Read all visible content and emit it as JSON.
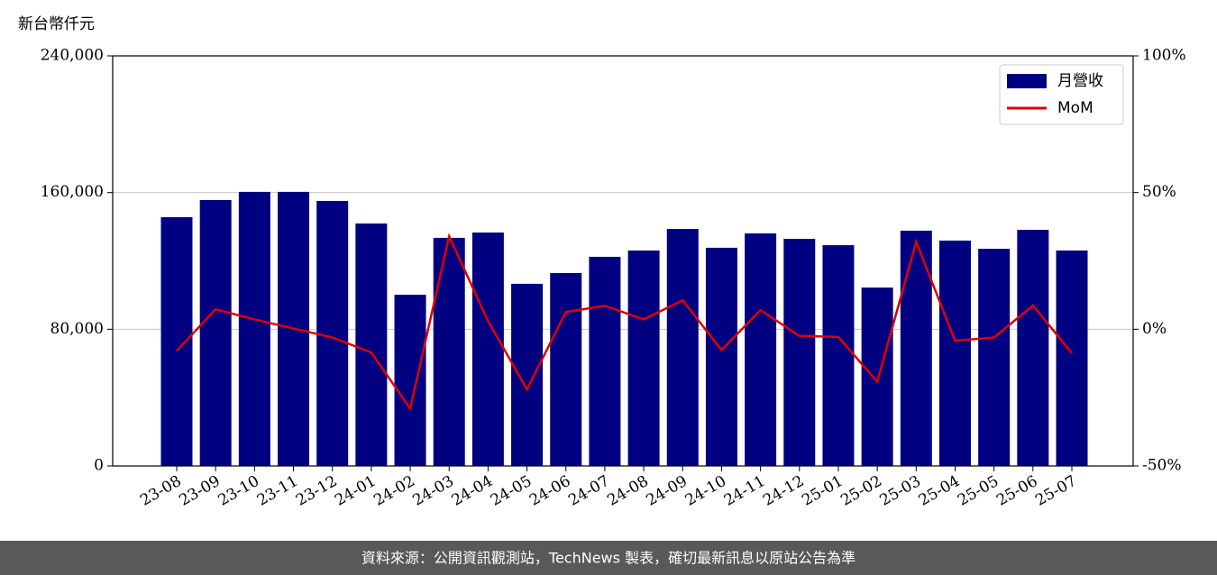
{
  "chart_data": {
    "type": "bar",
    "y_axis_label": "新台幣仟元",
    "source": "資料來源：公開資訊觀測站，TechNews 製表，確切最新訊息以原站公告為準",
    "categories": [
      "23-08",
      "23-09",
      "23-10",
      "23-11",
      "23-12",
      "24-01",
      "24-02",
      "24-03",
      "24-04",
      "24-05",
      "24-06",
      "24-07",
      "24-08",
      "24-09",
      "24-10",
      "24-11",
      "24-12",
      "25-01",
      "25-02",
      "25-03",
      "25-04",
      "25-05",
      "25-06",
      "25-07"
    ],
    "series": [
      {
        "name": "月營收",
        "type": "bar",
        "color": "#000080",
        "values": [
          145600,
          155600,
          160400,
          160400,
          155100,
          141900,
          100200,
          133500,
          136600,
          106600,
          112900,
          122400,
          126100,
          138700,
          127700,
          136100,
          132900,
          129200,
          104400,
          137700,
          131900,
          127100,
          138200,
          126100
        ]
      },
      {
        "name": "MoM",
        "type": "line",
        "axis": "y2",
        "color": "#e00000",
        "values": [
          -7.9,
          7.3,
          3.6,
          0.3,
          -3.0,
          -8.5,
          -29,
          34,
          3,
          -22,
          6.3,
          8.6,
          3.6,
          10.6,
          -7.6,
          7,
          -2.4,
          -2.8,
          -19.2,
          32,
          -4.2,
          -3.0,
          8.7,
          -8.7
        ]
      }
    ],
    "ylim": [
      0,
      240000
    ],
    "yticks": [
      0,
      {
        "value": 80000,
        "label": "80,000"
      },
      {
        "value": 160000,
        "label": "160,000"
      },
      {
        "value": 240000,
        "label": "240,000"
      }
    ],
    "y2lim": [
      -50,
      100
    ],
    "y2ticks": [
      {
        "value": -50,
        "label": "-50%"
      },
      {
        "value": 0,
        "label": "0%"
      },
      {
        "value": 50,
        "label": "50%"
      },
      {
        "value": 100,
        "label": "100%"
      }
    ],
    "grid": true,
    "legend": "upper right"
  }
}
